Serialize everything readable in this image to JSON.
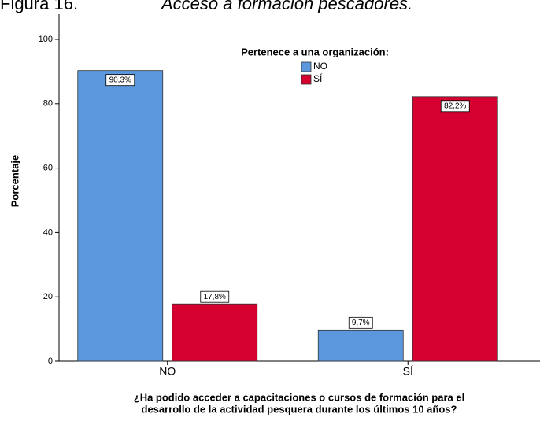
{
  "chart_data": {
    "type": "bar",
    "title": "Figura 16.",
    "subtitle": "Acceso a formación pescadores.",
    "y_label": "Porcentaje",
    "x_label": [
      "¿Ha podido acceder a capacitaciones o cursos de formación para el",
      "desarrollo de la actividad pesquera durante los últimos 10 años?"
    ],
    "legend_title": "Pertenece a una organización:",
    "categories": [
      "NO",
      "SÍ"
    ],
    "series": [
      {
        "name": "NO",
        "color": "#5a97dd",
        "values": [
          90.3,
          9.7
        ],
        "value_labels": [
          "90,3%",
          "9,7%"
        ]
      },
      {
        "name": "SÍ",
        "color": "#d5002f",
        "values": [
          17.8,
          82.2
        ],
        "value_labels": [
          "17,8%",
          "82,2%"
        ]
      }
    ],
    "ylim": [
      0,
      100
    ],
    "yticks": [
      0,
      20,
      40,
      60,
      80,
      100
    ]
  }
}
